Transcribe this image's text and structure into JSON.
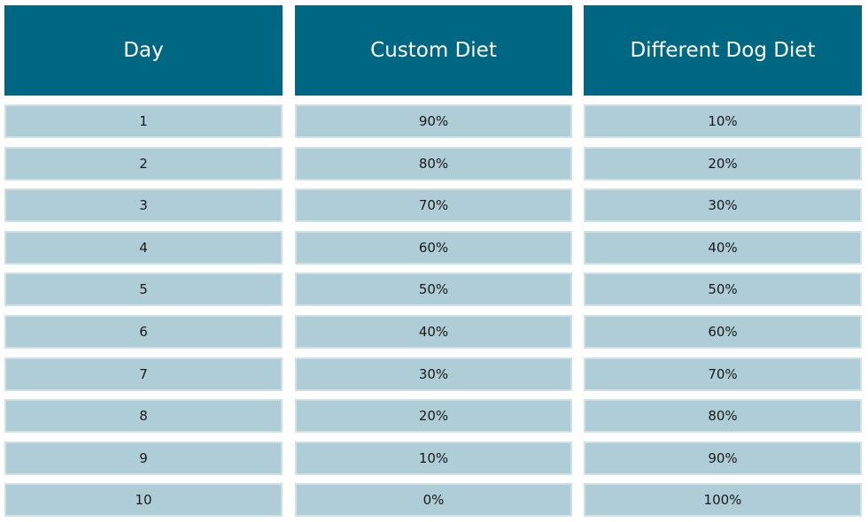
{
  "table": {
    "header": [
      "Day",
      "Custom Diet",
      "Different Dog Diet"
    ],
    "rows": [
      [
        "1",
        "90%",
        "10%"
      ],
      [
        "2",
        "80%",
        "20%"
      ],
      [
        "3",
        "70%",
        "30%"
      ],
      [
        "4",
        "60%",
        "40%"
      ],
      [
        "5",
        "50%",
        "50%"
      ],
      [
        "6",
        "40%",
        "60%"
      ],
      [
        "7",
        "30%",
        "70%"
      ],
      [
        "8",
        "20%",
        "80%"
      ],
      [
        "9",
        "10%",
        "90%"
      ],
      [
        "10",
        "0%",
        "100%"
      ]
    ]
  }
}
